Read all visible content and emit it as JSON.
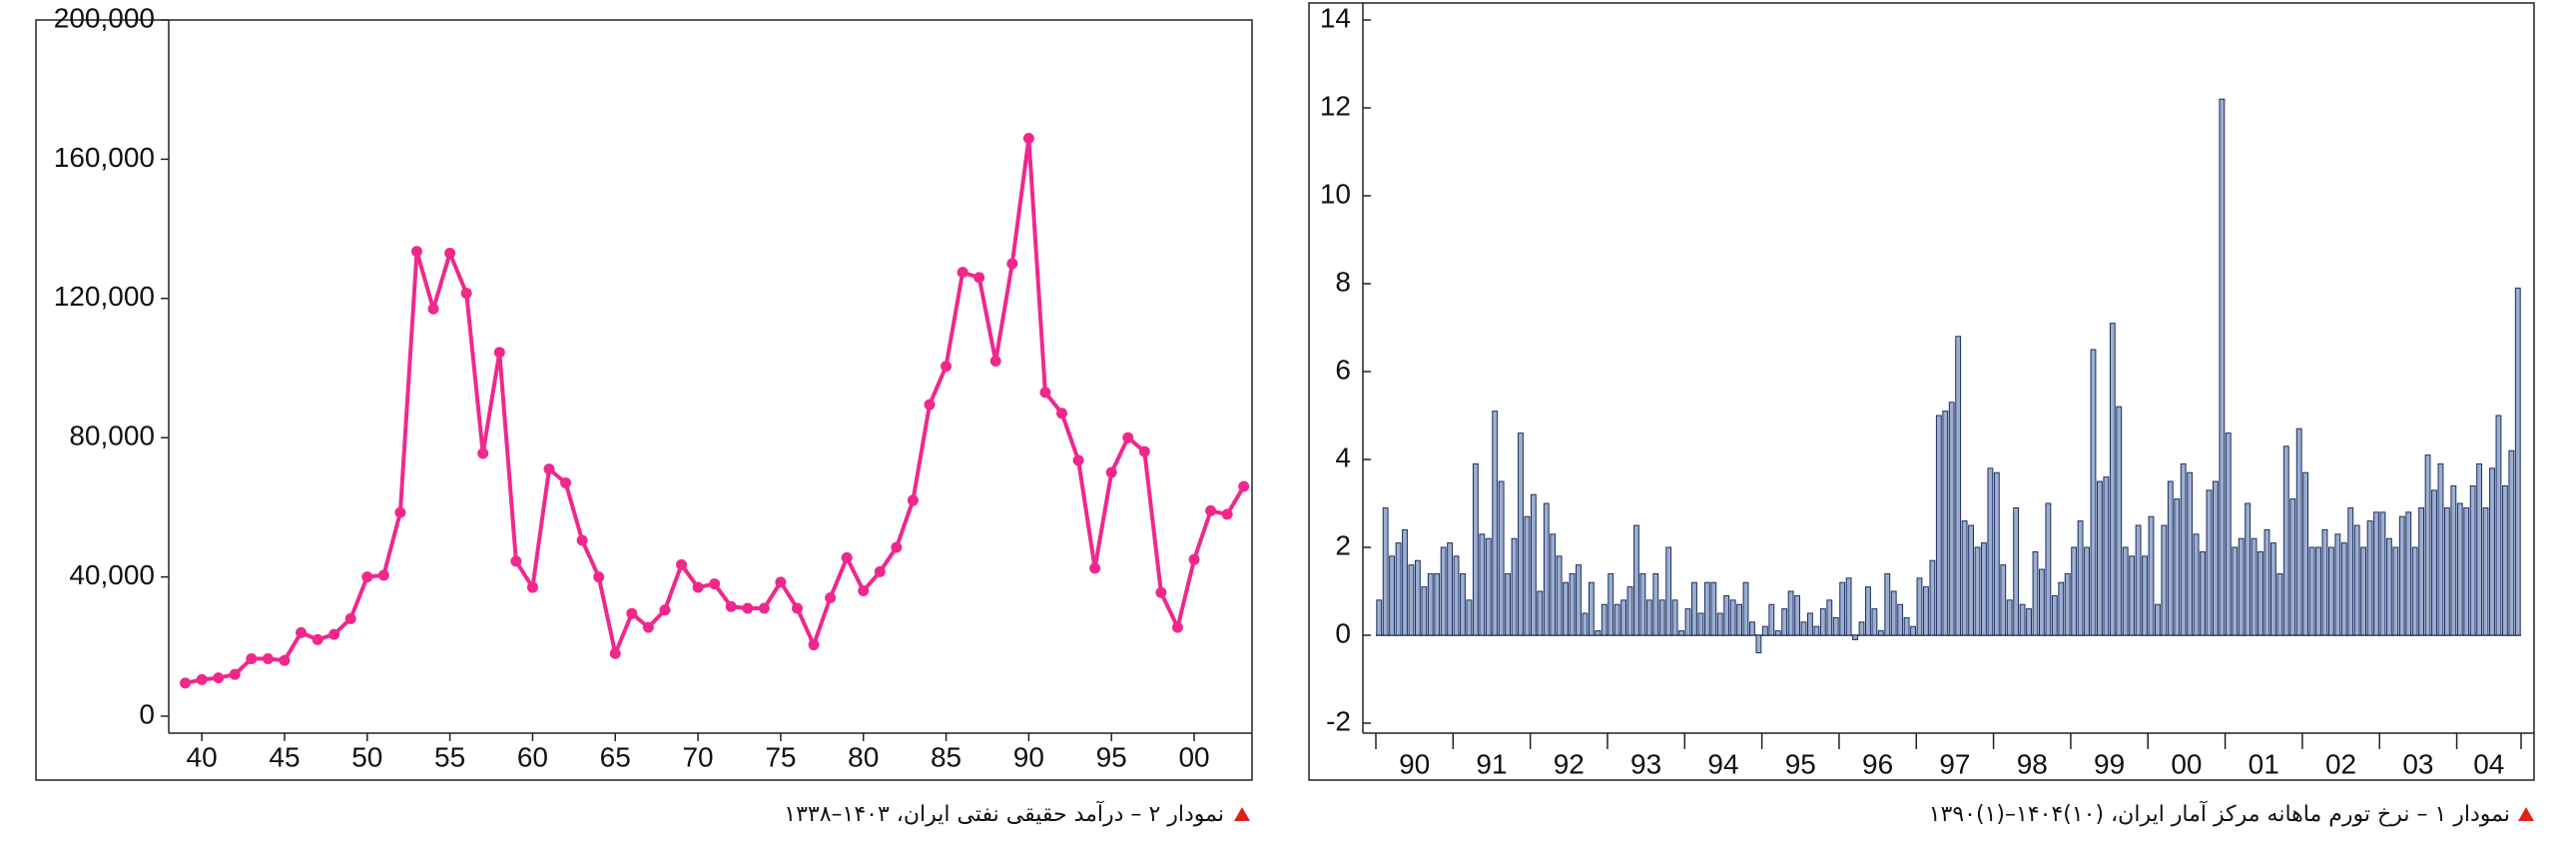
{
  "chart_data": [
    {
      "type": "line",
      "title": "نمودار ۲ – درآمد حقیقی نفتی ایران، ۱۴۰۳–۱۳۳۸",
      "color": "#f0288c",
      "markers": true,
      "x": [
        39,
        40,
        41,
        42,
        43,
        44,
        45,
        46,
        47,
        48,
        49,
        50,
        51,
        52,
        53,
        54,
        55,
        56,
        57,
        58,
        59,
        60,
        61,
        62,
        63,
        64,
        65,
        66,
        67,
        68,
        69,
        70,
        71,
        72,
        73,
        74,
        75,
        76,
        77,
        78,
        79,
        80,
        81,
        82,
        83,
        84,
        85,
        86,
        87,
        88,
        89,
        90,
        91,
        92,
        93,
        94,
        95,
        96,
        97,
        98,
        99,
        100,
        101,
        102,
        103
      ],
      "values": [
        9500,
        10500,
        11000,
        12000,
        16500,
        16500,
        16000,
        24000,
        22000,
        23500,
        28000,
        40000,
        40500,
        58500,
        133500,
        117000,
        133000,
        121500,
        75500,
        104500,
        44500,
        37000,
        71000,
        67000,
        50500,
        40000,
        18000,
        29500,
        25500,
        30500,
        43500,
        37000,
        38000,
        31500,
        31000,
        31000,
        38500,
        31000,
        20500,
        34000,
        45500,
        36000,
        41500,
        48500,
        62000,
        89500,
        100500,
        127500,
        126000,
        102000,
        130000,
        166000,
        93000,
        87000,
        73500,
        42500,
        70000,
        80000,
        76000,
        35500,
        25500,
        45000,
        59000,
        58000,
        66000
      ],
      "xlim": [
        38,
        103.5
      ],
      "xticks": [
        40,
        45,
        50,
        55,
        60,
        65,
        70,
        75,
        80,
        85,
        90,
        95,
        {
          "value": 100,
          "label": "00"
        }
      ],
      "ylim": [
        0,
        200000
      ],
      "yticks": [
        {
          "value": 0,
          "label": "0"
        },
        {
          "value": 40000,
          "label": "40,000"
        },
        {
          "value": 80000,
          "label": "80,000"
        },
        {
          "value": 120000,
          "label": "120,000"
        },
        {
          "value": 160000,
          "label": "160,000"
        },
        {
          "value": 200000,
          "label": "200,000"
        }
      ]
    },
    {
      "type": "bar",
      "title": "نمودار ۱ – نرخ تورم ماهانه مرکز آمار ایران، (۱۰)۱۴۰۴–(۱)۱۳۹۰",
      "color": "#9aaed2",
      "categories": [
        null,
        null,
        null,
        null,
        null,
        null,
        "90",
        null,
        null,
        null,
        null,
        null,
        null,
        null,
        null,
        null,
        null,
        null,
        "91",
        null,
        null,
        null,
        null,
        null,
        null,
        null,
        null,
        null,
        null,
        null,
        "92",
        null,
        null,
        null,
        null,
        null,
        null,
        null,
        null,
        null,
        null,
        null,
        "93",
        null,
        null,
        null,
        null,
        null,
        null,
        null,
        null,
        null,
        null,
        null,
        "94",
        null,
        null,
        null,
        null,
        null,
        null,
        null,
        null,
        null,
        null,
        null,
        "95",
        null,
        null,
        null,
        null,
        null,
        null,
        null,
        null,
        null,
        null,
        null,
        "96",
        null,
        null,
        null,
        null,
        null,
        null,
        null,
        null,
        null,
        null,
        null,
        "97",
        null,
        null,
        null,
        null,
        null,
        null,
        null,
        null,
        null,
        null,
        null,
        "98",
        null,
        null,
        null,
        null,
        null,
        null,
        null,
        null,
        null,
        null,
        null,
        "99",
        null,
        null,
        null,
        null,
        null,
        null,
        null,
        null,
        null,
        null,
        null,
        "00",
        null,
        null,
        null,
        null,
        null,
        null,
        null,
        null,
        null,
        null,
        null,
        "01",
        null,
        null,
        null,
        null,
        null,
        null,
        null,
        null,
        null,
        null,
        null,
        "02",
        null,
        null,
        null,
        null,
        null,
        null,
        null,
        null,
        null,
        null,
        null,
        "03",
        null,
        null,
        null,
        null,
        null,
        null,
        null,
        null,
        null,
        null,
        "04",
        null,
        null,
        null,
        null
      ],
      "values": [
        0.8,
        2.9,
        1.8,
        2.1,
        2.4,
        1.6,
        1.7,
        1.1,
        1.4,
        1.4,
        2.0,
        2.1,
        1.8,
        1.4,
        0.8,
        3.9,
        2.3,
        2.2,
        5.1,
        3.5,
        1.4,
        2.2,
        4.6,
        2.7,
        3.2,
        1.0,
        3.0,
        2.3,
        1.8,
        1.2,
        1.4,
        1.6,
        0.5,
        1.2,
        0.1,
        0.7,
        1.4,
        0.7,
        0.8,
        1.1,
        2.5,
        1.4,
        0.8,
        1.4,
        0.8,
        2.0,
        0.8,
        0.1,
        0.6,
        1.2,
        0.5,
        1.2,
        1.2,
        0.5,
        0.9,
        0.8,
        0.7,
        1.2,
        0.3,
        -0.4,
        0.2,
        0.7,
        0.1,
        0.6,
        1.0,
        0.9,
        0.3,
        0.5,
        0.2,
        0.6,
        0.8,
        0.4,
        1.2,
        1.3,
        -0.1,
        0.3,
        1.1,
        0.6,
        0.1,
        1.4,
        1.0,
        0.7,
        0.4,
        0.2,
        1.3,
        1.1,
        1.7,
        5.0,
        5.1,
        5.3,
        6.8,
        2.6,
        2.5,
        2.0,
        2.1,
        3.8,
        3.7,
        1.6,
        0.8,
        2.9,
        0.7,
        0.6,
        1.9,
        1.5,
        3.0,
        0.9,
        1.2,
        1.4,
        2.0,
        2.6,
        2.0,
        6.5,
        3.5,
        3.6,
        7.1,
        5.2,
        2.0,
        1.8,
        2.5,
        1.8,
        2.7,
        0.7,
        2.5,
        3.5,
        3.1,
        3.9,
        3.7,
        2.3,
        1.9,
        3.3,
        3.5,
        12.2,
        4.6,
        2.0,
        2.2,
        3.0,
        2.2,
        1.9,
        2.4,
        2.1,
        1.4,
        4.3,
        3.1,
        4.7,
        3.7,
        2.0,
        2.0,
        2.4,
        2.0,
        2.3,
        2.1,
        2.9,
        2.5,
        2.0,
        2.6,
        2.8,
        2.8,
        2.2,
        2.0,
        2.7,
        2.8,
        2.0,
        2.9,
        4.1,
        3.3,
        3.9,
        2.9,
        3.4,
        3.0,
        2.9,
        3.4,
        3.9,
        2.9,
        3.8,
        5.0,
        3.4,
        4.2,
        7.9
      ],
      "ylim": [
        -2,
        14
      ],
      "yticks": [
        -2,
        0,
        2,
        4,
        6,
        8,
        10,
        12,
        14
      ]
    }
  ]
}
